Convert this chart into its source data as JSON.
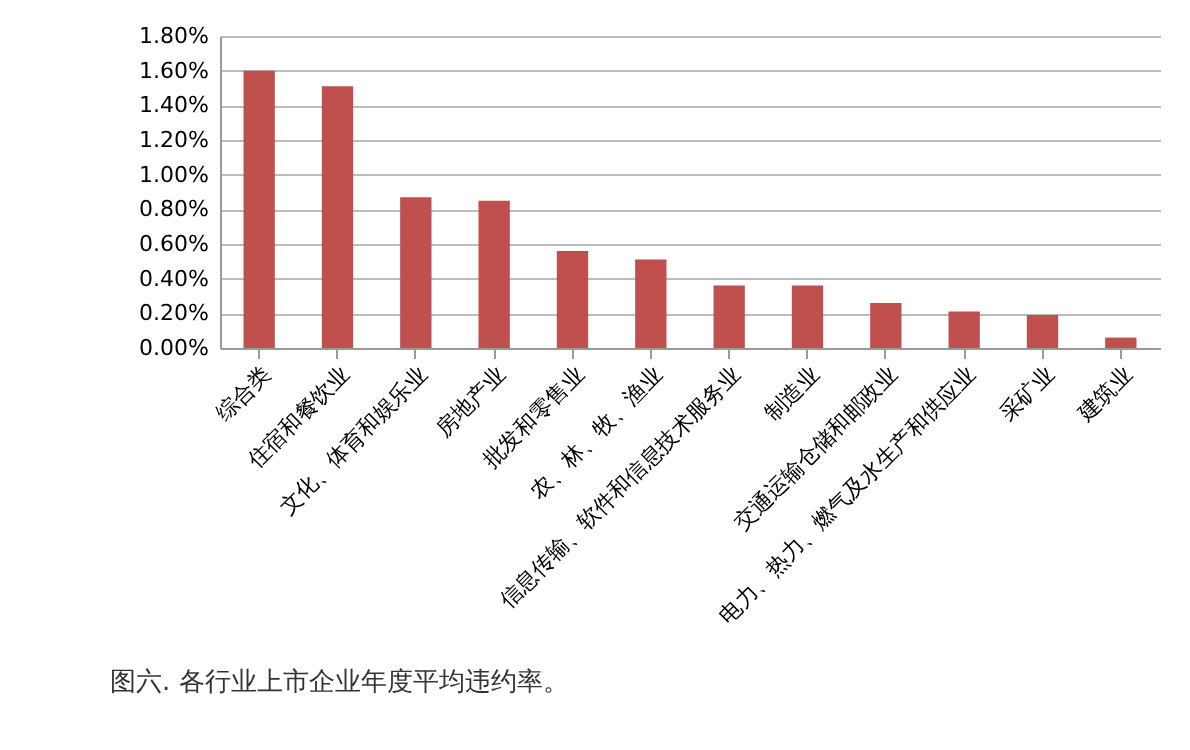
{
  "chart_data": {
    "type": "bar",
    "categories": [
      "综合类",
      "住宿和餐饮业",
      "文化、体育和娱乐业",
      "房地产业",
      "批发和零售业",
      "农、林、牧、渔业",
      "信息传输、软件和信息技术服务业",
      "制造业",
      "交通运输仓储和邮政业",
      "电力、热力、燃气及水生产和供应业",
      "采矿业",
      "建筑业"
    ],
    "values": [
      1.6,
      1.51,
      0.87,
      0.85,
      0.56,
      0.51,
      0.36,
      0.36,
      0.26,
      0.21,
      0.19,
      0.06
    ],
    "color": "#c0504d",
    "ylim": [
      0,
      1.8
    ],
    "yticks": [
      {
        "value": 0,
        "label": "0.00%"
      },
      {
        "value": 0.2,
        "label": "0.20%"
      },
      {
        "value": 0.4,
        "label": "0.40%"
      },
      {
        "value": 0.6,
        "label": "0.60%"
      },
      {
        "value": 0.8,
        "label": "0.80%"
      },
      {
        "value": 1.0,
        "label": "1.00%"
      },
      {
        "value": 1.2,
        "label": "1.20%"
      },
      {
        "value": 1.4,
        "label": "1.40%"
      },
      {
        "value": 1.6,
        "label": "1.60%"
      },
      {
        "value": 1.8,
        "label": "1.80%"
      }
    ],
    "grid": "y",
    "annotations": [
      "图六. 各行业上市企业年度平均违约率。"
    ]
  }
}
